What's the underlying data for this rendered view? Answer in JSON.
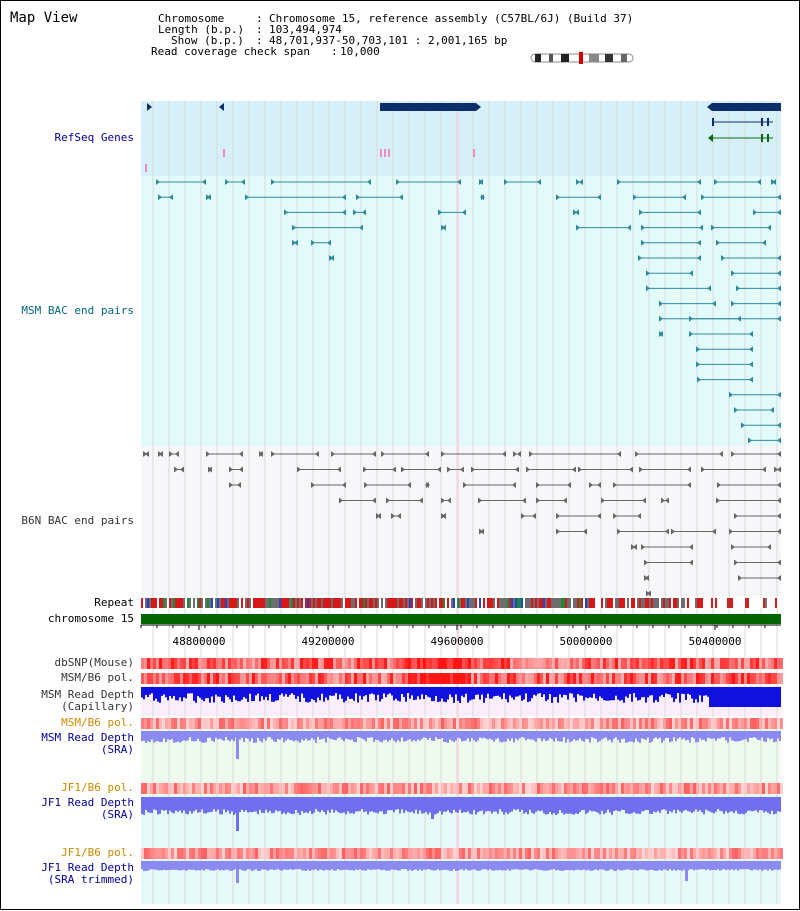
{
  "header": {
    "title": "Map View",
    "chromosome_label": "Chromosome",
    "chromosome_value": "Chromosome 15, reference assembly (C57BL/6J) (Build 37)",
    "length_label": "Length (b.p.)",
    "length_value": "103,494,974",
    "show_label": "Show (b.p.)",
    "show_value": "48,701,937-50,703,101 : 2,001,165 bp",
    "span_label": "Read coverage check span",
    "span_value": "10,000"
  },
  "tracks": {
    "refseq_genes": "RefSeq Genes",
    "msm_bac": "MSM BAC end pairs",
    "b6n_bac": "B6N BAC end pairs",
    "repeat": "Repeat",
    "chromosome": "chromosome 15",
    "dbsnp": "dbSNP(Mouse)",
    "msm_b6_pol_1": "MSM/B6 pol.",
    "msm_read_depth_cap_1": "MSM Read Depth",
    "msm_read_depth_cap_2": "(Capillary)",
    "msm_b6_pol_2": "MSM/B6 pol.",
    "msm_read_depth_sra_1": "MSM Read Depth",
    "msm_read_depth_sra_2": "(SRA)",
    "jf1_b6_pol_1": "JF1/B6 pol.",
    "jf1_read_depth_sra_1": "JF1 Read Depth",
    "jf1_read_depth_sra_2": "(SRA)",
    "jf1_b6_pol_2": "JF1/B6 pol.",
    "jf1_read_depth_trim_1": "JF1 Read Depth",
    "jf1_read_depth_trim_2": "(SRA trimmed)"
  },
  "axis": {
    "ticks": [
      "48800000",
      "49200000",
      "49600000",
      "50000000",
      "50400000"
    ]
  },
  "colors": {
    "refseq_bg": "#d6f0fa",
    "msm_bg": "#e3fafa",
    "b6n_bg": "#f7f7fa",
    "gene": "#0d2f6b",
    "msm_feature": "#2e8a9e",
    "b6n_feature": "#666666",
    "chromosome_bar": "#006400",
    "label_blue": "#000099",
    "label_msm": "#006680",
    "label_orange": "#cc8800"
  }
}
